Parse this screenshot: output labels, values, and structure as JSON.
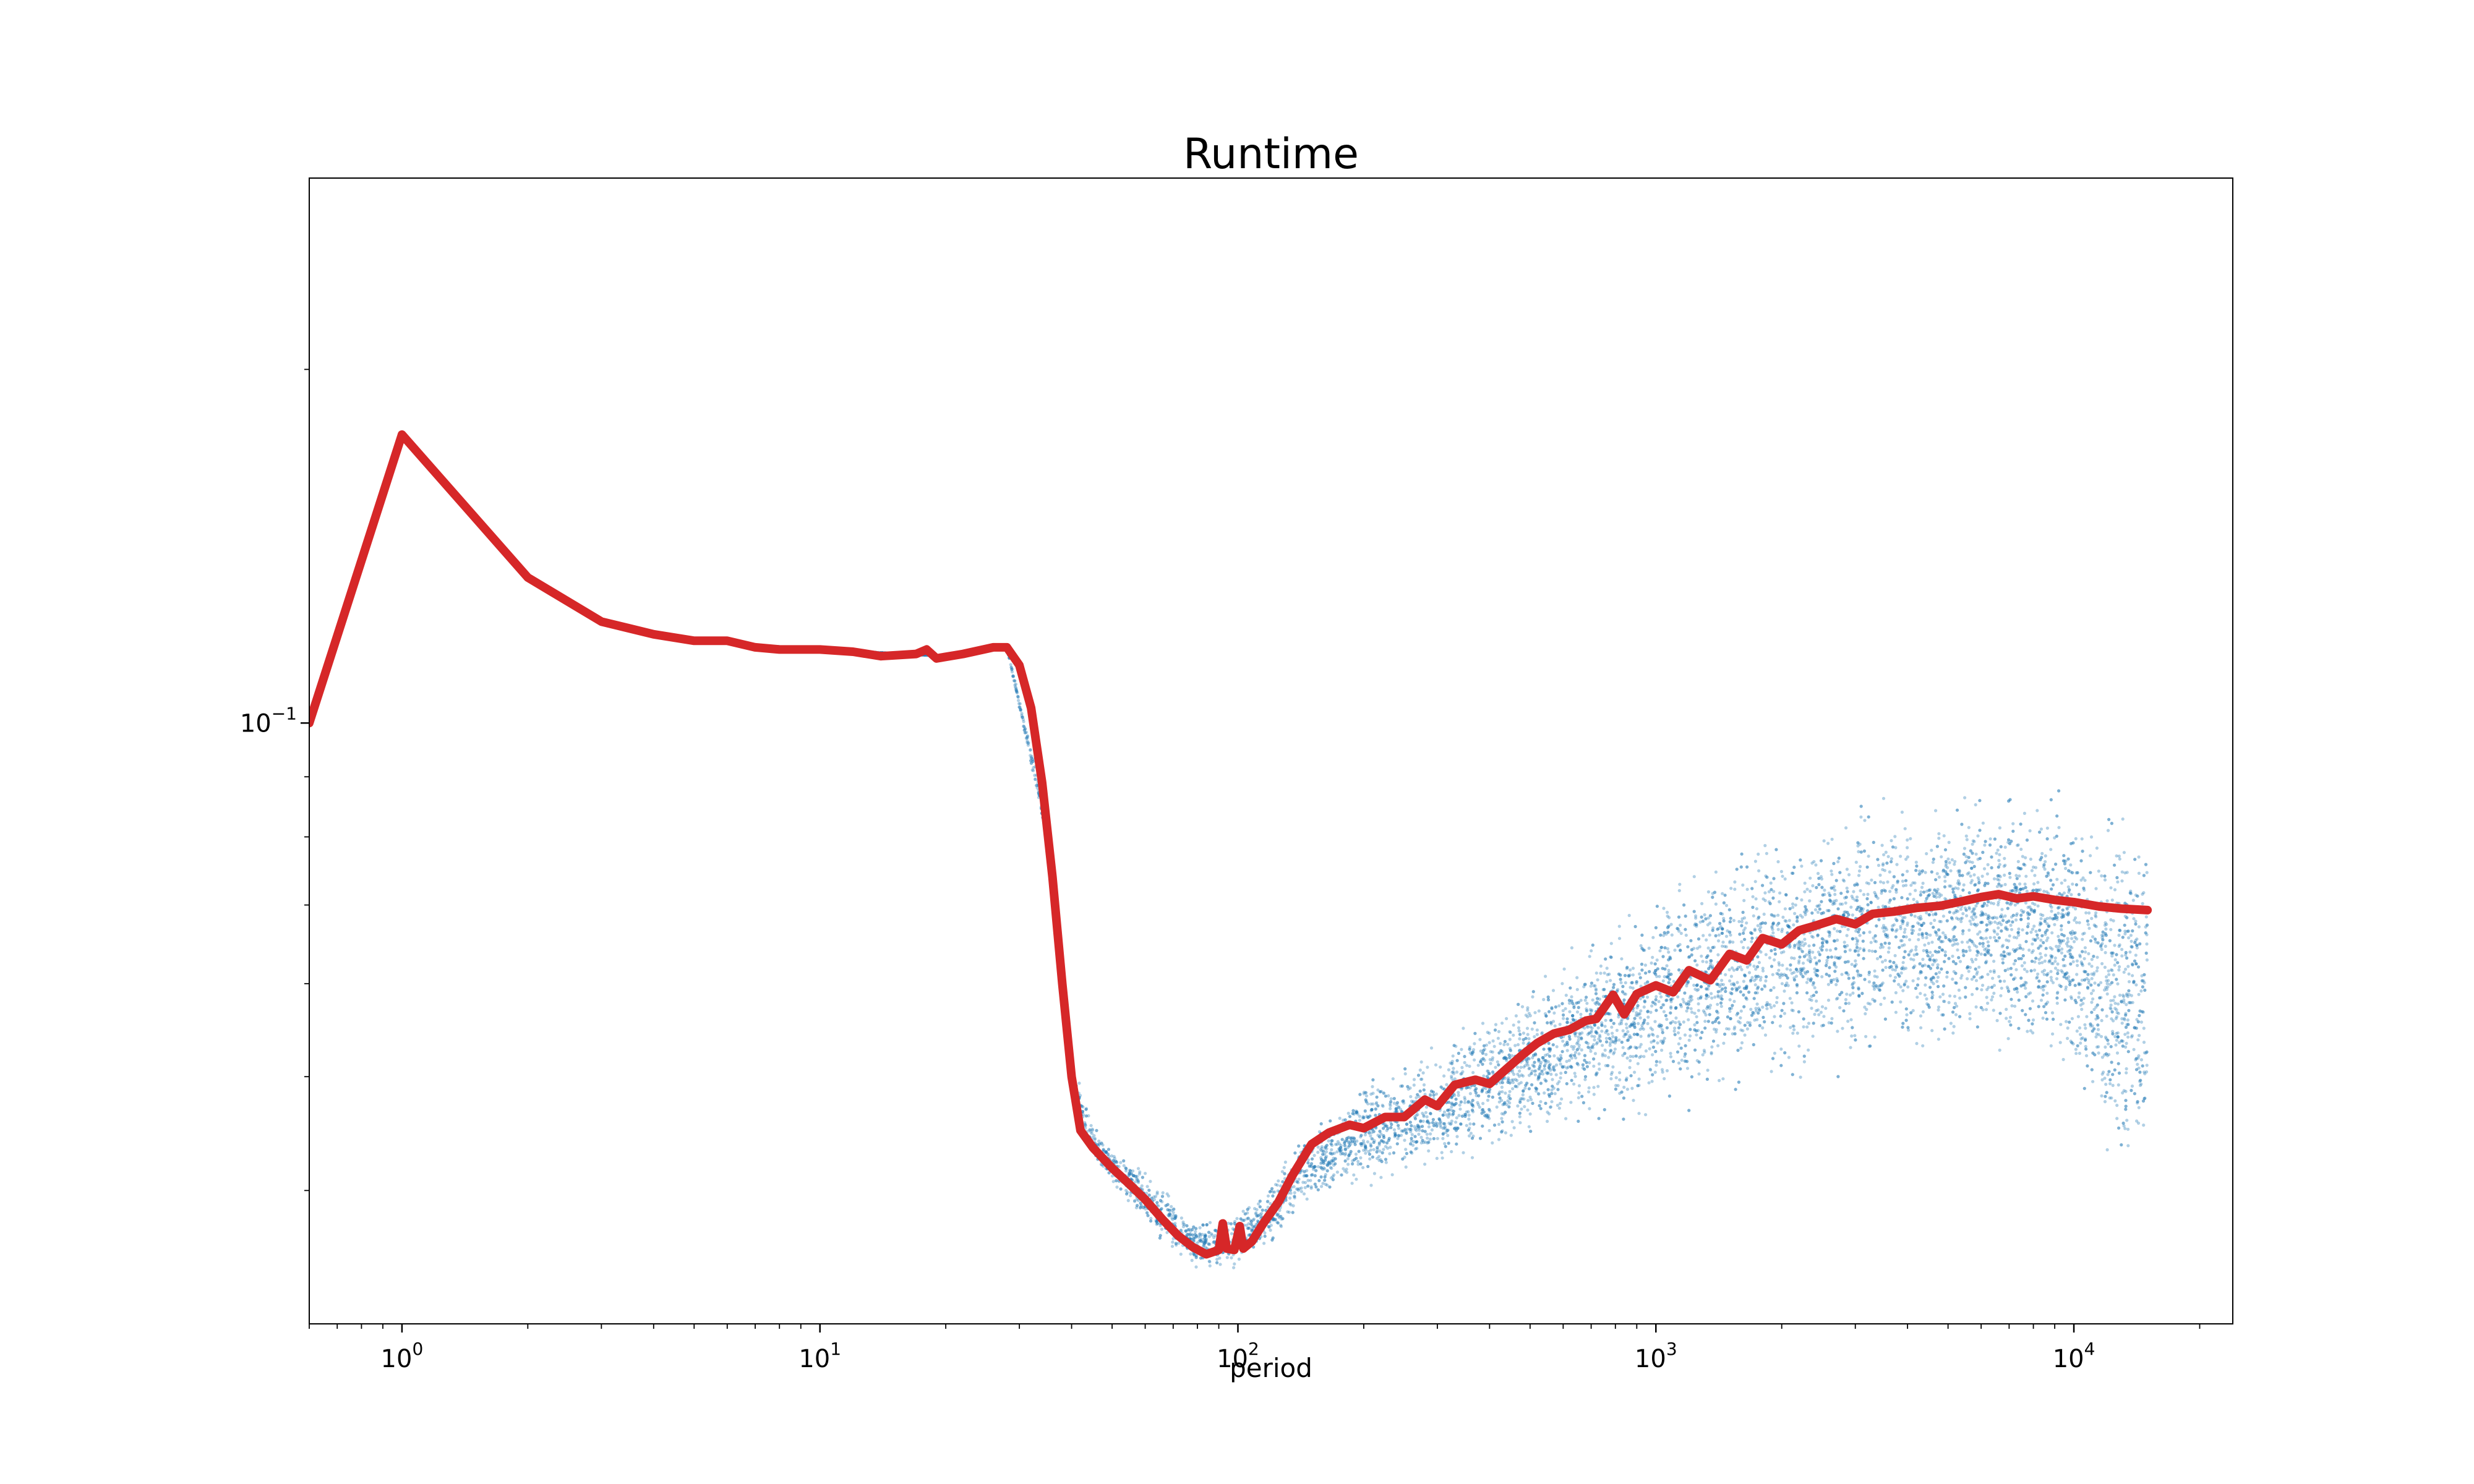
{
  "chart_data": {
    "type": "scatter",
    "title": "Runtime",
    "xlabel": "period",
    "ylabel": "",
    "xscale": "log",
    "yscale": "log",
    "xlim": [
      0.6,
      24000
    ],
    "ylim": [
      0.0308,
      0.291
    ],
    "grid": false,
    "legend": "none",
    "x_ticks": [
      {
        "value": 1,
        "base": "10",
        "exp": "0"
      },
      {
        "value": 10,
        "base": "10",
        "exp": "1"
      },
      {
        "value": 100,
        "base": "10",
        "exp": "2"
      },
      {
        "value": 1000,
        "base": "10",
        "exp": "3"
      },
      {
        "value": 10000,
        "base": "10",
        "exp": "4"
      }
    ],
    "y_ticks": [
      {
        "value": 0.1,
        "base": "10",
        "exp": "−1"
      }
    ],
    "series": [
      {
        "kind": "line",
        "color": "#d62728",
        "points": [
          [
            0.6,
            0.1
          ],
          [
            1,
            0.176
          ],
          [
            2,
            0.133
          ],
          [
            3,
            0.122
          ],
          [
            4,
            0.119
          ],
          [
            5,
            0.1175
          ],
          [
            6,
            0.1175
          ],
          [
            7,
            0.116
          ],
          [
            8,
            0.1155
          ],
          [
            10,
            0.1155
          ],
          [
            12,
            0.115
          ],
          [
            14,
            0.114
          ],
          [
            17,
            0.1145
          ],
          [
            18,
            0.1155
          ],
          [
            19,
            0.1135
          ],
          [
            22,
            0.1145
          ],
          [
            26,
            0.116
          ],
          [
            28,
            0.116
          ],
          [
            30,
            0.112
          ],
          [
            32,
            0.103
          ],
          [
            34,
            0.089
          ],
          [
            36,
            0.074
          ],
          [
            38,
            0.06
          ],
          [
            40,
            0.05
          ],
          [
            42,
            0.045
          ],
          [
            45,
            0.0435
          ],
          [
            50,
            0.0418
          ],
          [
            55,
            0.0405
          ],
          [
            60,
            0.0393
          ],
          [
            66,
            0.0378
          ],
          [
            72,
            0.0366
          ],
          [
            78,
            0.0358
          ],
          [
            84,
            0.0353
          ],
          [
            90,
            0.0356
          ],
          [
            92,
            0.0375
          ],
          [
            94,
            0.0357
          ],
          [
            98,
            0.0356
          ],
          [
            101,
            0.0373
          ],
          [
            103,
            0.0357
          ],
          [
            108,
            0.0362
          ],
          [
            115,
            0.0375
          ],
          [
            125,
            0.0391
          ],
          [
            135,
            0.0412
          ],
          [
            150,
            0.0438
          ],
          [
            165,
            0.0448
          ],
          [
            185,
            0.0455
          ],
          [
            200,
            0.0452
          ],
          [
            225,
            0.0462
          ],
          [
            250,
            0.0462
          ],
          [
            280,
            0.0478
          ],
          [
            300,
            0.0472
          ],
          [
            330,
            0.0492
          ],
          [
            370,
            0.0497
          ],
          [
            400,
            0.0493
          ],
          [
            440,
            0.0508
          ],
          [
            480,
            0.0522
          ],
          [
            520,
            0.0534
          ],
          [
            570,
            0.0544
          ],
          [
            620,
            0.0548
          ],
          [
            680,
            0.0558
          ],
          [
            720,
            0.056
          ],
          [
            790,
            0.0587
          ],
          [
            840,
            0.0565
          ],
          [
            900,
            0.0588
          ],
          [
            1000,
            0.0598
          ],
          [
            1100,
            0.059
          ],
          [
            1200,
            0.0616
          ],
          [
            1350,
            0.0604
          ],
          [
            1500,
            0.0636
          ],
          [
            1650,
            0.0628
          ],
          [
            1800,
            0.0656
          ],
          [
            2000,
            0.0648
          ],
          [
            2200,
            0.0666
          ],
          [
            2400,
            0.0672
          ],
          [
            2700,
            0.0681
          ],
          [
            3000,
            0.0674
          ],
          [
            3300,
            0.0688
          ],
          [
            3700,
            0.0691
          ],
          [
            4200,
            0.0696
          ],
          [
            4800,
            0.0699
          ],
          [
            5400,
            0.0705
          ],
          [
            6000,
            0.0711
          ],
          [
            6600,
            0.0715
          ],
          [
            7300,
            0.0709
          ],
          [
            8000,
            0.0712
          ],
          [
            9000,
            0.0707
          ],
          [
            10000,
            0.0704
          ],
          [
            11500,
            0.0698
          ],
          [
            13000,
            0.0695
          ],
          [
            15000,
            0.0693
          ]
        ]
      },
      {
        "kind": "scatter",
        "color": "#1f77b4",
        "bands": [
          [
            1,
            0.176,
            0.176
          ],
          [
            2,
            0.133,
            0.133
          ],
          [
            3,
            0.122,
            0.122
          ],
          [
            5,
            0.1175,
            0.1175
          ],
          [
            10,
            0.1155,
            0.1155
          ],
          [
            20,
            0.114,
            0.114
          ],
          [
            28,
            0.116,
            0.116
          ],
          [
            35,
            0.078,
            0.084
          ],
          [
            40,
            0.048,
            0.052
          ],
          [
            45,
            0.042,
            0.046
          ],
          [
            50,
            0.04,
            0.044
          ],
          [
            60,
            0.037,
            0.042
          ],
          [
            70,
            0.035,
            0.04
          ],
          [
            80,
            0.034,
            0.038
          ],
          [
            90,
            0.034,
            0.038
          ],
          [
            100,
            0.034,
            0.0385
          ],
          [
            120,
            0.0355,
            0.041
          ],
          [
            140,
            0.038,
            0.045
          ],
          [
            160,
            0.039,
            0.047
          ],
          [
            200,
            0.04,
            0.05
          ],
          [
            250,
            0.0405,
            0.052
          ],
          [
            300,
            0.041,
            0.054
          ],
          [
            400,
            0.0425,
            0.058
          ],
          [
            500,
            0.0435,
            0.061
          ],
          [
            600,
            0.044,
            0.064
          ],
          [
            800,
            0.0445,
            0.069
          ],
          [
            1000,
            0.045,
            0.074
          ],
          [
            1500,
            0.047,
            0.081
          ],
          [
            2000,
            0.048,
            0.085
          ],
          [
            3000,
            0.0495,
            0.088
          ],
          [
            4000,
            0.05,
            0.09
          ],
          [
            6000,
            0.051,
            0.091
          ],
          [
            8000,
            0.05,
            0.091
          ],
          [
            10000,
            0.047,
            0.091
          ],
          [
            12000,
            0.039,
            0.09
          ],
          [
            15000,
            0.038,
            0.089
          ]
        ]
      }
    ]
  }
}
